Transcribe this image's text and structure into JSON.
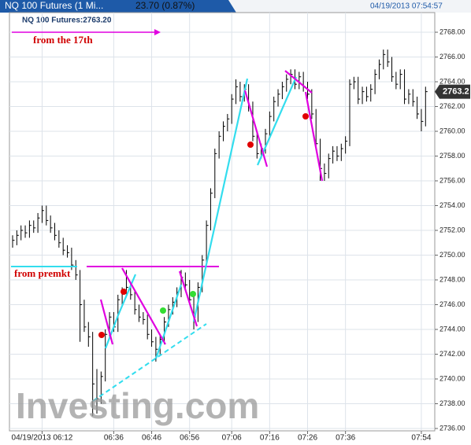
{
  "header": {
    "tab": "NQ 100 Futures (1 Mi...",
    "change": "23.70 (0.87%)",
    "timestamp": "04/19/2013 07:54:57"
  },
  "chart_data": {
    "type": "hlc",
    "title": "NQ 100 Futures:2763.20",
    "watermark": "Investing.com",
    "annotations": [
      "from the 17th",
      "from premkt"
    ],
    "last_price": 2763.2,
    "color": "#000000",
    "high": [
      2751.6,
      2752.0,
      2752.4,
      2752.4,
      2752.8,
      2752.8,
      2753.4,
      2754.0,
      2754.0,
      2753.2,
      2752.6,
      2752.0,
      2751.4,
      2750.8,
      2750.6,
      2749.6,
      2748.8,
      2746.4,
      2744.6,
      2743.8,
      2740.8,
      2740.6,
      2744.0,
      2745.4,
      2745.4,
      2746.8,
      2747.4,
      2748.8,
      2747.8,
      2747.2,
      2746.0,
      2745.4,
      2745.2,
      2744.0,
      2743.4,
      2743.6,
      2745.0,
      2746.0,
      2746.6,
      2747.4,
      2748.8,
      2748.6,
      2748.0,
      2746.8,
      2747.8,
      2750.0,
      2752.8,
      2755.4,
      2758.6,
      2760.0,
      2760.8,
      2761.4,
      2763.0,
      2764.2,
      2764.0,
      2763.8,
      2763.8,
      2762.4,
      2760.0,
      2759.0,
      2760.2,
      2761.6,
      2762.8,
      2763.4,
      2764.0,
      2764.6,
      2765.0,
      2765.0,
      2764.8,
      2764.8,
      2764.0,
      2763.4,
      2761.8,
      2759.4,
      2757.4,
      2758.2,
      2758.8,
      2758.8,
      2759.0,
      2759.6,
      2764.2,
      2764.4,
      2764.4,
      2763.6,
      2763.6,
      2763.8,
      2765.0,
      2765.8,
      2766.6,
      2766.6,
      2766.0,
      2764.8,
      2765.0,
      2765.0,
      2763.4,
      2763.4,
      2762.8,
      2761.8,
      2763.6
    ],
    "low": [
      2750.6,
      2750.8,
      2751.2,
      2751.4,
      2751.4,
      2751.8,
      2751.8,
      2752.6,
      2752.4,
      2751.8,
      2751.2,
      2750.6,
      2750.0,
      2749.8,
      2748.8,
      2748.0,
      2743.0,
      2743.8,
      2742.6,
      2737.0,
      2737.2,
      2738.0,
      2739.8,
      2743.2,
      2743.8,
      2743.8,
      2746.0,
      2746.6,
      2746.4,
      2745.2,
      2744.6,
      2744.4,
      2743.2,
      2742.6,
      2741.4,
      2742.0,
      2742.8,
      2744.2,
      2745.2,
      2745.8,
      2746.6,
      2747.2,
      2746.0,
      2744.0,
      2744.6,
      2747.0,
      2749.2,
      2752.0,
      2754.6,
      2757.8,
      2759.2,
      2760.0,
      2760.6,
      2762.2,
      2762.4,
      2762.4,
      2761.6,
      2759.2,
      2757.8,
      2757.8,
      2758.2,
      2759.4,
      2760.8,
      2762.0,
      2762.6,
      2763.2,
      2763.8,
      2763.4,
      2763.4,
      2763.2,
      2762.6,
      2761.0,
      2758.6,
      2756.0,
      2756.0,
      2756.2,
      2757.4,
      2757.6,
      2757.6,
      2758.2,
      2758.8,
      2763.4,
      2762.2,
      2762.2,
      2762.4,
      2762.4,
      2763.0,
      2764.2,
      2765.0,
      2765.2,
      2764.0,
      2763.4,
      2763.4,
      2762.2,
      2762.2,
      2762.0,
      2761.0,
      2760.0,
      2760.4
    ],
    "close": [
      2751.2,
      2751.6,
      2752.0,
      2751.8,
      2752.4,
      2752.2,
      2753.0,
      2753.6,
      2752.8,
      2752.2,
      2751.6,
      2751.0,
      2750.4,
      2750.2,
      2749.2,
      2748.4,
      2746.0,
      2744.2,
      2743.4,
      2739.6,
      2738.4,
      2740.2,
      2743.6,
      2745.0,
      2744.2,
      2746.4,
      2747.0,
      2747.4,
      2746.8,
      2745.6,
      2745.0,
      2744.8,
      2743.6,
      2743.0,
      2742.4,
      2743.2,
      2744.6,
      2745.6,
      2746.2,
      2747.0,
      2748.2,
      2747.6,
      2746.4,
      2745.0,
      2747.4,
      2749.6,
      2752.4,
      2755.0,
      2758.2,
      2759.6,
      2760.4,
      2761.0,
      2762.6,
      2763.6,
      2762.8,
      2763.4,
      2762.0,
      2759.6,
      2758.2,
      2758.6,
      2759.8,
      2761.2,
      2762.4,
      2763.0,
      2763.6,
      2764.2,
      2764.6,
      2763.8,
      2764.4,
      2763.6,
      2763.0,
      2761.4,
      2759.0,
      2757.0,
      2756.6,
      2757.8,
      2758.4,
      2758.0,
      2758.6,
      2759.2,
      2763.8,
      2764.0,
      2762.6,
      2763.2,
      2762.8,
      2763.4,
      2764.6,
      2765.4,
      2766.2,
      2765.6,
      2764.4,
      2763.8,
      2764.6,
      2762.6,
      2763.0,
      2762.4,
      2761.4,
      2760.8,
      2763.2
    ],
    "ylim": [
      2736,
      2768
    ],
    "yticks": [
      {
        "value": 2736,
        "label": "2736.00"
      },
      {
        "value": 2738,
        "label": "2738.00"
      },
      {
        "value": 2740,
        "label": "2740.00"
      },
      {
        "value": 2742,
        "label": "2742.00"
      },
      {
        "value": 2744,
        "label": "2744.00"
      },
      {
        "value": 2746,
        "label": "2746.00"
      },
      {
        "value": 2748,
        "label": "2748.00"
      },
      {
        "value": 2750,
        "label": "2750.00"
      },
      {
        "value": 2752,
        "label": "2752.00"
      },
      {
        "value": 2754,
        "label": "2754.00"
      },
      {
        "value": 2756,
        "label": "2756.00"
      },
      {
        "value": 2758,
        "label": "2758.00"
      },
      {
        "value": 2760,
        "label": "2760.00"
      },
      {
        "value": 2762,
        "label": "2762.00"
      },
      {
        "value": 2764,
        "label": "2764.00"
      },
      {
        "value": 2766,
        "label": "2766.00"
      },
      {
        "value": 2768,
        "label": "2768.00"
      }
    ],
    "xticks": [
      {
        "value": 7,
        "label": "04/19/2013 06:12"
      },
      {
        "value": 24,
        "label": "06:36"
      },
      {
        "value": 33,
        "label": "06:46"
      },
      {
        "value": 42,
        "label": "06:56"
      },
      {
        "value": 52,
        "label": "07:06"
      },
      {
        "value": 61,
        "label": "07:16"
      },
      {
        "value": 70,
        "label": "07:26"
      },
      {
        "value": 79,
        "label": "07:36"
      },
      {
        "value": 97,
        "label": "07:54"
      }
    ],
    "grid": true
  }
}
